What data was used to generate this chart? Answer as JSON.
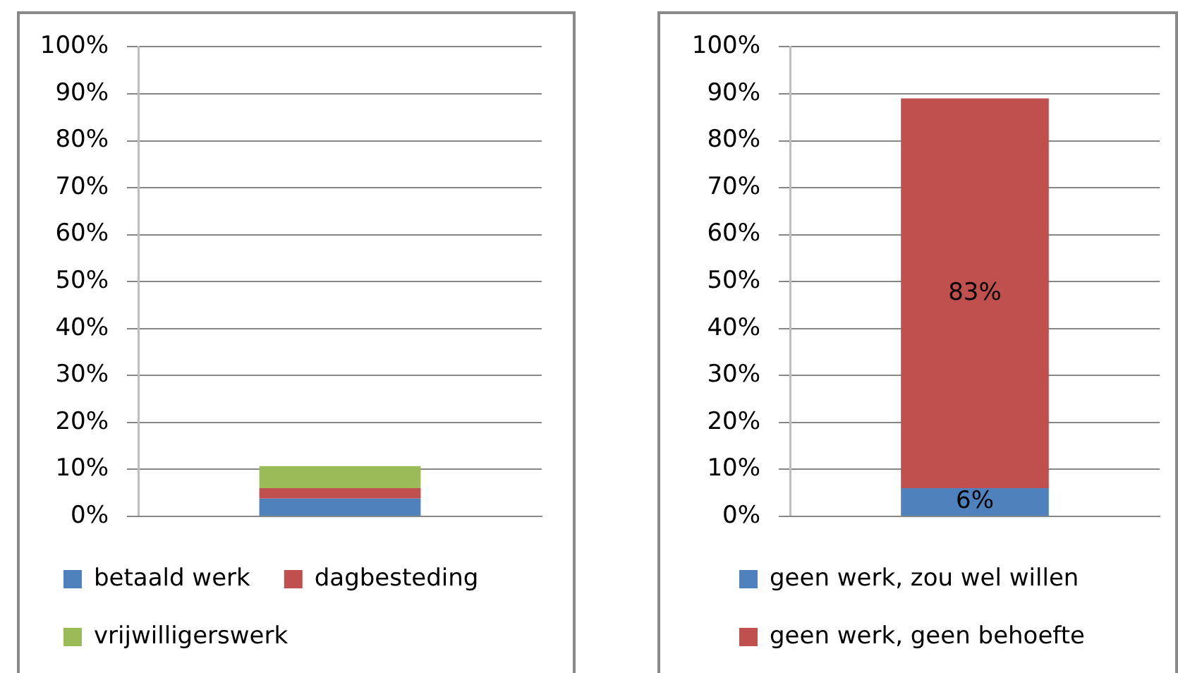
{
  "chart_data": [
    {
      "type": "bar",
      "stacked": true,
      "categories": [
        null
      ],
      "series": [
        {
          "name": "betaald werk",
          "color": "#4f81bd",
          "values": [
            3.8
          ]
        },
        {
          "name": "dagbesteding",
          "color": "#c0504d",
          "values": [
            2.2
          ]
        },
        {
          "name": "vrijwilligerswerk",
          "color": "#9bbb59",
          "values": [
            4.7
          ]
        }
      ],
      "ylim": [
        0,
        100
      ],
      "yticks": [
        {
          "value": 0,
          "label": "0%"
        },
        {
          "value": 10,
          "label": "10%"
        },
        {
          "value": 20,
          "label": "20%"
        },
        {
          "value": 30,
          "label": "30%"
        },
        {
          "value": 40,
          "label": "40%"
        },
        {
          "value": 50,
          "label": "50%"
        },
        {
          "value": 60,
          "label": "60%"
        },
        {
          "value": 70,
          "label": "70%"
        },
        {
          "value": 80,
          "label": "80%"
        },
        {
          "value": 90,
          "label": "90%"
        },
        {
          "value": 100,
          "label": "100%"
        }
      ],
      "grid": "y",
      "legend": "bottom",
      "tick_labels": "y"
    },
    {
      "type": "bar",
      "stacked": true,
      "categories": [
        null
      ],
      "series": [
        {
          "name": "geen werk, zou wel willen",
          "color": "#4f81bd",
          "values": [
            6
          ],
          "value_labels": [
            "6%"
          ]
        },
        {
          "name": "geen werk, geen behoefte",
          "color": "#c0504d",
          "values": [
            83
          ],
          "value_labels": [
            "83%"
          ]
        }
      ],
      "ylim": [
        0,
        100
      ],
      "yticks": [
        {
          "value": 0,
          "label": "0%"
        },
        {
          "value": 10,
          "label": "10%"
        },
        {
          "value": 20,
          "label": "20%"
        },
        {
          "value": 30,
          "label": "30%"
        },
        {
          "value": 40,
          "label": "40%"
        },
        {
          "value": 50,
          "label": "50%"
        },
        {
          "value": 60,
          "label": "60%"
        },
        {
          "value": 70,
          "label": "70%"
        },
        {
          "value": 80,
          "label": "80%"
        },
        {
          "value": 90,
          "label": "90%"
        },
        {
          "value": 100,
          "label": "100%"
        }
      ],
      "grid": "y",
      "legend": "bottom",
      "tick_labels": "y"
    }
  ]
}
